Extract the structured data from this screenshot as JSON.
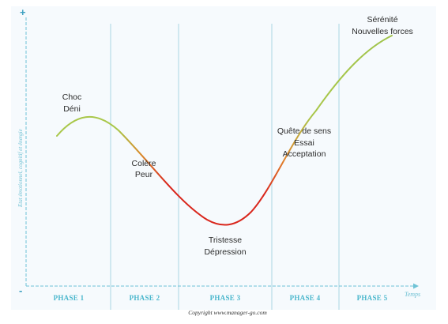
{
  "axes": {
    "y_plus": "+",
    "y_minus": "-",
    "y_label": "Etat émotionnel, cognitif et énergie",
    "x_label": "Temps"
  },
  "phases": [
    "PHASE 1",
    "PHASE 2",
    "PHASE 3",
    "PHASE 4",
    "PHASE 5"
  ],
  "emotions": {
    "phase1": [
      "Choc",
      "Déni"
    ],
    "phase2": [
      "Colère",
      "Peur"
    ],
    "phase3": [
      "Tristesse",
      "Dépression"
    ],
    "phase4": [
      "Quête de sens",
      "Essai",
      "Acceptation"
    ],
    "phase5": [
      "Sérénité",
      "Nouvelles forces"
    ]
  },
  "copyright": "Copyright www.manager-go.com",
  "colors": {
    "axis": "#6fc3d6",
    "divider": "#a9d5e3",
    "curve_green": "#9fc34a",
    "curve_red": "#d9261c",
    "phase_text": "#49b6cc"
  }
}
